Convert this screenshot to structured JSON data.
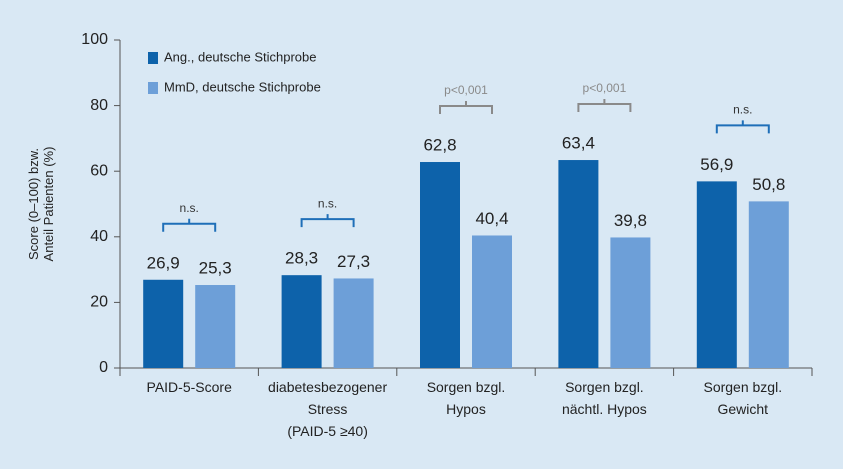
{
  "chart_data": {
    "type": "bar",
    "y_label": [
      "Score (0–100) bzw.",
      "Anteil Patienten (%)"
    ],
    "categories": [
      [
        "PAID-5-Score"
      ],
      [
        "diabetesbezogener",
        "Stress",
        "(PAID-5 ≥40)"
      ],
      [
        "Sorgen bzgl.",
        "Hypos"
      ],
      [
        "Sorgen bzgl.",
        "nächtl. Hypos"
      ],
      [
        "Sorgen bzgl.",
        "Gewicht"
      ]
    ],
    "series": [
      {
        "name": "Ang., deutsche Stichprobe",
        "color": "#0d62aa",
        "values": [
          26.9,
          28.3,
          62.8,
          63.4,
          56.9
        ],
        "value_labels": [
          "26,9",
          "28,3",
          "62,8",
          "63,4",
          "56,9"
        ]
      },
      {
        "name": "MmD, deutsche Stichprobe",
        "color": "#6d9fd8",
        "values": [
          25.3,
          27.3,
          40.4,
          39.8,
          50.8
        ],
        "value_labels": [
          "25,3",
          "27,3",
          "40,4",
          "39,8",
          "50,8"
        ]
      }
    ],
    "significance": [
      "n.s.",
      "n.s.",
      "p<0,001",
      "p<0,001",
      "n.s."
    ],
    "significance_colors": [
      "#1f6fb8",
      "#1f6fb8",
      "#8a8a8a",
      "#8a8a8a",
      "#1f6fb8"
    ],
    "ylim": [
      0,
      100
    ],
    "yticks": [
      0,
      20,
      40,
      60,
      80,
      100
    ],
    "legend": "top-left"
  }
}
